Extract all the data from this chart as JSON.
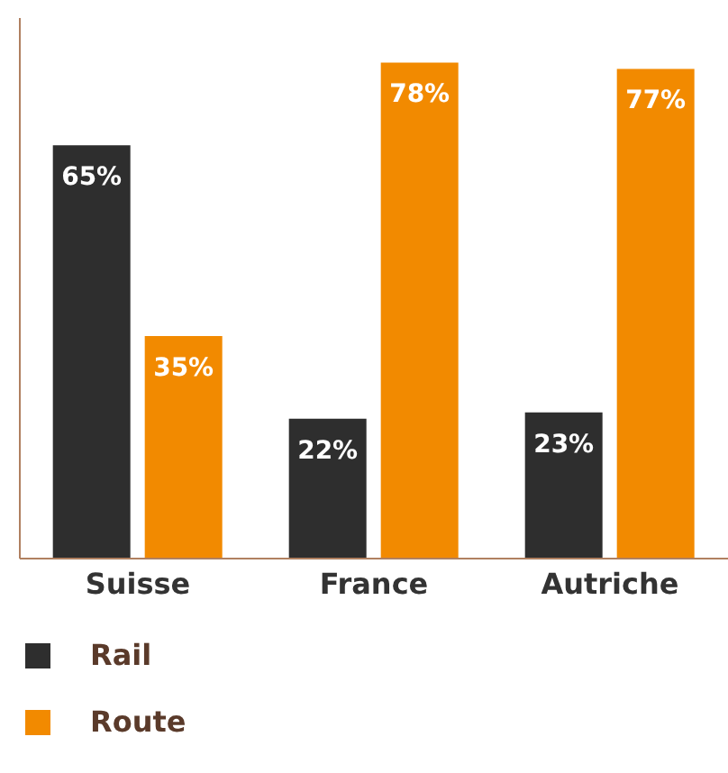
{
  "chart_data": {
    "type": "bar",
    "categories": [
      "Suisse",
      "France",
      "Autriche"
    ],
    "series": [
      {
        "name": "Rail",
        "color": "#2e2e2e",
        "values": [
          65,
          22,
          23
        ],
        "value_labels": [
          "65%",
          "22%",
          "23%"
        ]
      },
      {
        "name": "Route",
        "color": "#f28a00",
        "values": [
          35,
          78,
          77
        ],
        "value_labels": [
          "35%",
          "78%",
          "77%"
        ]
      }
    ],
    "ylim": [
      0,
      85
    ],
    "legend": "bottom left",
    "grid": false
  }
}
